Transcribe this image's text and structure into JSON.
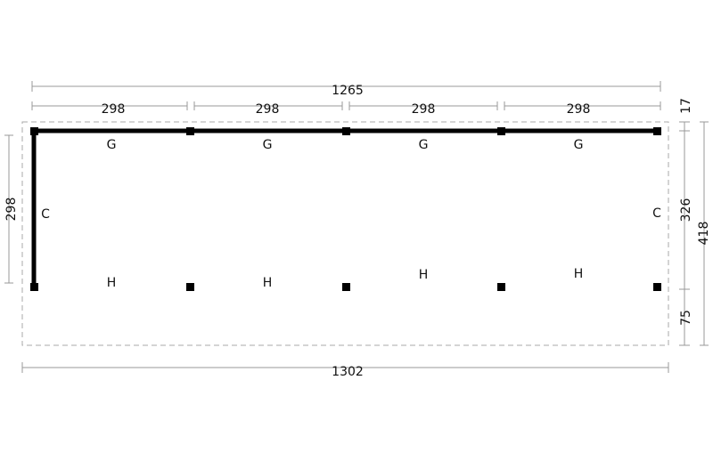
{
  "dimensions": {
    "overall_top": "1265",
    "segments": [
      "298",
      "298",
      "298",
      "298"
    ],
    "left": "298",
    "right": [
      "17",
      "326",
      "418",
      "75"
    ],
    "overall_bottom": "1302"
  },
  "labels": {
    "beams": [
      "G",
      "G",
      "G",
      "G"
    ],
    "sides": [
      "C",
      "C"
    ],
    "posts": [
      "H",
      "H",
      "H",
      "H"
    ]
  }
}
